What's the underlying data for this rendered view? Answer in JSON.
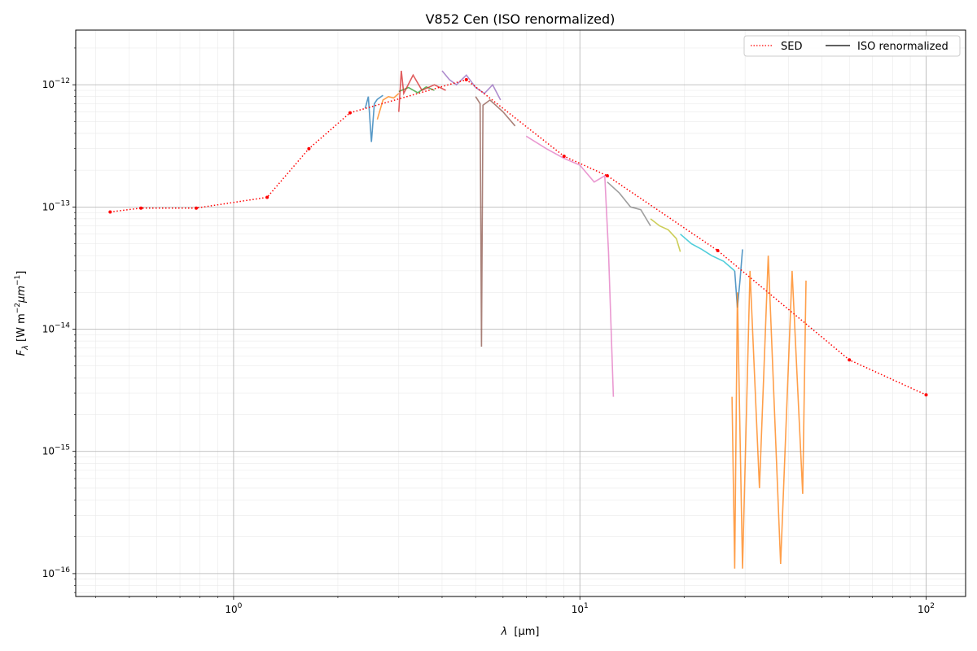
{
  "chart_data": {
    "type": "line",
    "title": "V852 Cen (ISO renormalized)",
    "xlabel_symbol": "λ",
    "xlabel_unit": "[μm]",
    "ylabel_symbol": "F",
    "ylabel_sub": "λ",
    "ylabel_unit_prefix": "[W m",
    "ylabel_unit_mid": "μm",
    "ylabel_unit_suffix": "]",
    "ylabel_exp": "−2",
    "ylabel_exp2": "−1",
    "xscale": "log",
    "yscale": "log",
    "xlim": [
      0.35,
      130
    ],
    "ylim": [
      6.5e-17,
      2.8e-12
    ],
    "x_ticks": [
      {
        "value": 1,
        "base": "10",
        "exp": "0"
      },
      {
        "value": 10,
        "base": "10",
        "exp": "1"
      },
      {
        "value": 100,
        "base": "10",
        "exp": "2"
      }
    ],
    "y_ticks": [
      {
        "value": 1e-16,
        "base": "10",
        "exp": "−16"
      },
      {
        "value": 1e-15,
        "base": "10",
        "exp": "−15"
      },
      {
        "value": 1e-14,
        "base": "10",
        "exp": "−14"
      },
      {
        "value": 1e-13,
        "base": "10",
        "exp": "−13"
      },
      {
        "value": 1e-12,
        "base": "10",
        "exp": "−12"
      }
    ],
    "grid": "major and minor",
    "legend": {
      "position": "top-right",
      "entries": [
        {
          "label": "SED",
          "color": "#ff0000",
          "style": "dotted"
        },
        {
          "label": "ISO renormalized",
          "color": "#000000",
          "style": "solid"
        }
      ]
    },
    "sed": {
      "name": "SED",
      "color": "#ff0000",
      "points": [
        [
          0.44,
          9.1e-14
        ],
        [
          0.54,
          9.8e-14
        ],
        [
          0.78,
          9.8e-14
        ],
        [
          1.25,
          1.2e-13
        ],
        [
          1.65,
          3e-13
        ],
        [
          2.17,
          5.9e-13
        ],
        [
          4.7,
          1.1e-12
        ],
        [
          9.0,
          2.6e-13
        ],
        [
          12.0,
          1.8e-13
        ],
        [
          25.0,
          4.4e-14
        ],
        [
          60.0,
          5.6e-15
        ],
        [
          100.0,
          2.9e-15
        ]
      ]
    },
    "iso_segments": [
      {
        "color": "#1f77b4",
        "x": [
          2.4,
          2.45,
          2.5,
          2.55,
          2.6,
          2.7
        ],
        "y": [
          6.4e-13,
          8e-13,
          3.4e-13,
          7e-13,
          7.6e-13,
          8.2e-13
        ]
      },
      {
        "color": "#ff7f0e",
        "x": [
          2.6,
          2.7,
          2.8,
          2.9,
          3.0
        ],
        "y": [
          5.2e-13,
          7.5e-13,
          8e-13,
          7.8e-13,
          8.5e-13
        ]
      },
      {
        "color": "#2ca02c",
        "x": [
          3.0,
          3.2,
          3.4,
          3.6,
          3.8
        ],
        "y": [
          8.8e-13,
          9.5e-13,
          8.6e-13,
          9.6e-13,
          9e-13
        ]
      },
      {
        "color": "#d62728",
        "x": [
          3.0,
          3.05,
          3.1,
          3.3,
          3.5,
          3.8,
          4.1
        ],
        "y": [
          6e-13,
          1.3e-12,
          8.5e-13,
          1.2e-12,
          9e-13,
          1e-12,
          9e-13
        ]
      },
      {
        "color": "#9467bd",
        "x": [
          4.0,
          4.2,
          4.4,
          4.7,
          5.0,
          5.3,
          5.6,
          5.9
        ],
        "y": [
          1.3e-12,
          1.1e-12,
          1e-12,
          1.2e-12,
          9.5e-13,
          8.5e-13,
          1e-12,
          7.5e-13
        ]
      },
      {
        "color": "#8c564b",
        "x": [
          5.0,
          5.15,
          5.2,
          5.25,
          5.5,
          6.0,
          6.5
        ],
        "y": [
          8e-13,
          7e-13,
          7.2e-15,
          6.8e-13,
          7.5e-13,
          6e-13,
          4.6e-13
        ]
      },
      {
        "color": "#e377c2",
        "x": [
          7.0,
          8.0,
          9.0,
          10.0,
          11.0,
          11.8,
          12.1,
          12.5
        ],
        "y": [
          3.8e-13,
          3e-13,
          2.5e-13,
          2.2e-13,
          1.6e-13,
          1.8e-13,
          4.3e-14,
          2.8e-15
        ]
      },
      {
        "color": "#7f7f7f",
        "x": [
          12.0,
          13.0,
          14.0,
          15.0,
          16.0
        ],
        "y": [
          1.6e-13,
          1.3e-13,
          1e-13,
          9.5e-14,
          7e-14
        ]
      },
      {
        "color": "#bcbd22",
        "x": [
          16.0,
          17.0,
          18.0,
          19.0,
          19.5
        ],
        "y": [
          8e-14,
          7e-14,
          6.5e-14,
          5.5e-14,
          4.3e-14
        ]
      },
      {
        "color": "#17becf",
        "x": [
          19.5,
          21.0,
          22.5,
          24.0,
          26.0,
          28.0
        ],
        "y": [
          6e-14,
          5e-14,
          4.5e-14,
          4e-14,
          3.6e-14,
          3e-14
        ]
      },
      {
        "color": "#1f77b4",
        "x": [
          28.0,
          28.5,
          29.0,
          29.5
        ],
        "y": [
          3e-14,
          1.5e-14,
          2.5e-14,
          4.5e-14
        ]
      },
      {
        "color": "#ff7f0e",
        "x": [
          27.5,
          28.0,
          28.5,
          29.5,
          31.0,
          33.0,
          35.0,
          38.0,
          41.0,
          44.0,
          45.0
        ],
        "y": [
          2.8e-15,
          1.1e-16,
          2e-14,
          1.1e-16,
          3e-14,
          5e-16,
          4e-14,
          1.2e-16,
          3e-14,
          4.5e-16,
          2.5e-14
        ]
      }
    ]
  }
}
